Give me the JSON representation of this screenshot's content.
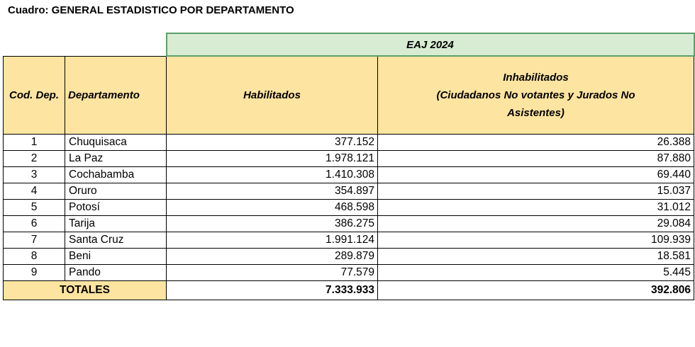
{
  "title": "Cuadro: GENERAL ESTADISTICO POR DEPARTAMENTO",
  "group_header": "EAJ  2024",
  "headers": {
    "code": "Cod. Dep.",
    "department": "Departamento",
    "enabled": "Habilitados",
    "disabled_line1": "Inhabilitados",
    "disabled_line2": "(Ciudadanos No votantes y Jurados No",
    "disabled_line3": "Asistentes)"
  },
  "rows": [
    {
      "code": "1",
      "department": "Chuquisaca",
      "enabled": "377.152",
      "disabled": "26.388"
    },
    {
      "code": "2",
      "department": "La Paz",
      "enabled": "1.978.121",
      "disabled": "87.880"
    },
    {
      "code": "3",
      "department": "Cochabamba",
      "enabled": "1.410.308",
      "disabled": "69.440"
    },
    {
      "code": "4",
      "department": "Oruro",
      "enabled": "354.897",
      "disabled": "15.037"
    },
    {
      "code": "5",
      "department": "Potosí",
      "enabled": "468.598",
      "disabled": "31.012"
    },
    {
      "code": "6",
      "department": "Tarija",
      "enabled": "386.275",
      "disabled": "29.084"
    },
    {
      "code": "7",
      "department": "Santa Cruz",
      "enabled": "1.991.124",
      "disabled": "109.939"
    },
    {
      "code": "8",
      "department": "Beni",
      "enabled": "289.879",
      "disabled": "18.581"
    },
    {
      "code": "9",
      "department": "Pando",
      "enabled": "77.579",
      "disabled": "5.445"
    }
  ],
  "totals": {
    "label": "TOTALES",
    "enabled": "7.333.933",
    "disabled": "392.806"
  },
  "colors": {
    "header_fill": "#fde4a0",
    "group_header_fill": "#d8ecd3",
    "group_header_border": "#5aa06a"
  }
}
